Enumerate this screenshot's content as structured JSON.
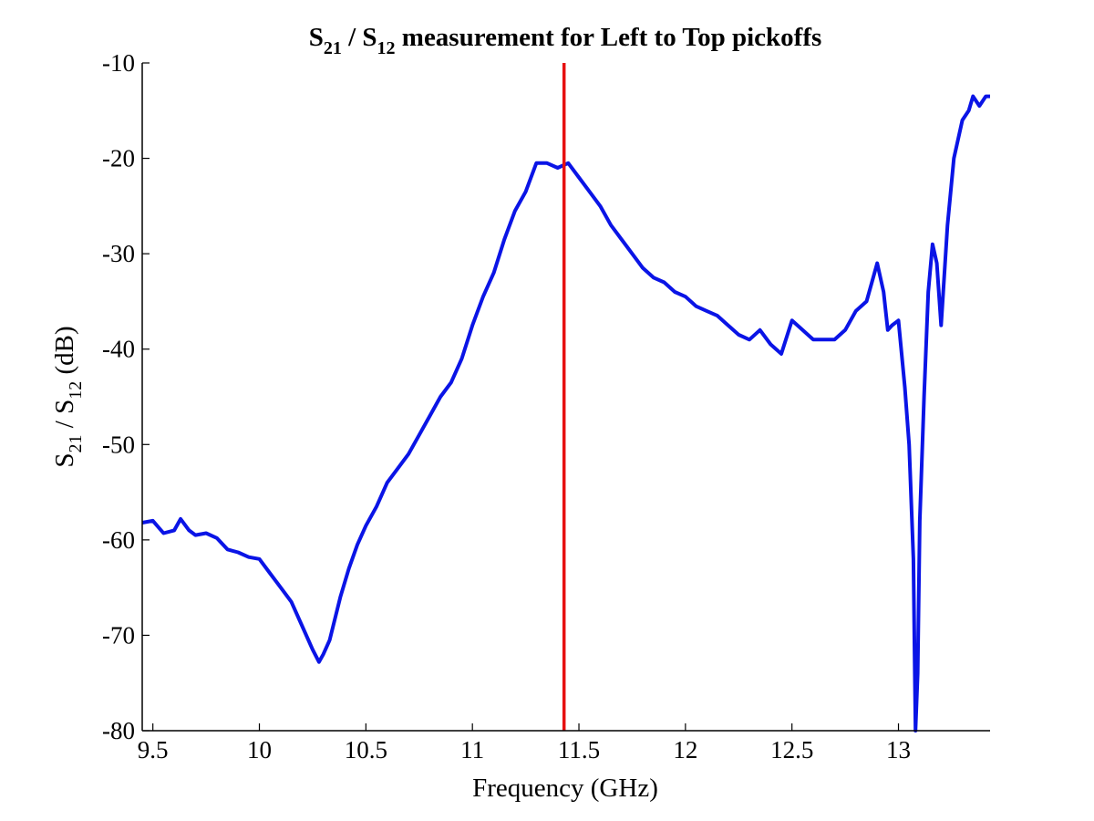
{
  "chart_data": {
    "type": "line",
    "title": {
      "s": "S",
      "sub1": "21",
      "sep": " / S",
      "sub2": "12",
      "rest": " measurement for Left to Top pickoffs"
    },
    "xlabel": "Frequency (GHz)",
    "ylabel": {
      "s": "S",
      "sub1": "21",
      "sep": " / S",
      "sub2": "12",
      "rest": " (dB)"
    },
    "xlim": [
      9.45,
      13.43
    ],
    "ylim": [
      -80,
      -10
    ],
    "x_ticks": [
      9.5,
      10,
      10.5,
      11,
      11.5,
      12,
      12.5,
      13
    ],
    "x_tick_labels": [
      "9.5",
      "10",
      "10.5",
      "11",
      "11.5",
      "12",
      "12.5",
      "13"
    ],
    "y_ticks": [
      -80,
      -70,
      -60,
      -50,
      -40,
      -30,
      -20,
      -10
    ],
    "y_tick_labels": [
      "-80",
      "-70",
      "-60",
      "-50",
      "-40",
      "-30",
      "-20",
      "-10"
    ],
    "grid": false,
    "legend": "none",
    "series": [
      {
        "color": "#0a14e6",
        "x": [
          9.45,
          9.5,
          9.55,
          9.6,
          9.63,
          9.67,
          9.7,
          9.75,
          9.8,
          9.85,
          9.9,
          9.95,
          10.0,
          10.05,
          10.1,
          10.15,
          10.2,
          10.25,
          10.28,
          10.3,
          10.33,
          10.38,
          10.42,
          10.46,
          10.5,
          10.55,
          10.6,
          10.65,
          10.7,
          10.75,
          10.8,
          10.85,
          10.9,
          10.95,
          11.0,
          11.05,
          11.1,
          11.15,
          11.2,
          11.25,
          11.3,
          11.35,
          11.4,
          11.45,
          11.5,
          11.55,
          11.6,
          11.65,
          11.7,
          11.75,
          11.8,
          11.85,
          11.9,
          11.95,
          12.0,
          12.05,
          12.1,
          12.15,
          12.2,
          12.25,
          12.3,
          12.35,
          12.4,
          12.45,
          12.5,
          12.55,
          12.6,
          12.65,
          12.7,
          12.75,
          12.8,
          12.85,
          12.9,
          12.93,
          12.95,
          12.97,
          13.0,
          13.03,
          13.05,
          13.07,
          13.08,
          13.09,
          13.1,
          13.12,
          13.14,
          13.16,
          13.18,
          13.2,
          13.23,
          13.26,
          13.3,
          13.33,
          13.35,
          13.38,
          13.41,
          13.43
        ],
        "y": [
          -58.2,
          -58.0,
          -59.3,
          -59.0,
          -57.8,
          -59.0,
          -59.5,
          -59.3,
          -59.8,
          -61.0,
          -61.3,
          -61.8,
          -62.0,
          -63.5,
          -65.0,
          -66.5,
          -69.0,
          -71.5,
          -72.8,
          -72.0,
          -70.5,
          -66.0,
          -63.0,
          -60.5,
          -58.5,
          -56.5,
          -54.0,
          -52.5,
          -51.0,
          -49.0,
          -47.0,
          -45.0,
          -43.5,
          -41.0,
          -37.5,
          -34.5,
          -32.0,
          -28.5,
          -25.5,
          -23.5,
          -20.5,
          -20.5,
          -21.0,
          -20.5,
          -22.0,
          -23.5,
          -25.0,
          -27.0,
          -28.5,
          -30.0,
          -31.5,
          -32.5,
          -33.0,
          -34.0,
          -34.5,
          -35.5,
          -36.0,
          -36.5,
          -37.5,
          -38.5,
          -39.0,
          -38.0,
          -39.5,
          -40.5,
          -37.0,
          -38.0,
          -39.0,
          -39.0,
          -39.0,
          -38.0,
          -36.0,
          -35.0,
          -31.0,
          -34.0,
          -38.0,
          -37.5,
          -37.0,
          -44.0,
          -50.0,
          -62.0,
          -80.0,
          -74.0,
          -58.0,
          -45.0,
          -34.0,
          -29.0,
          -31.0,
          -37.5,
          -27.0,
          -20.0,
          -16.0,
          -15.0,
          -13.5,
          -14.5,
          -13.5,
          -13.5
        ]
      },
      {
        "color": "#e61010",
        "x": [
          11.43,
          11.43
        ],
        "y": [
          -10,
          -80
        ]
      }
    ]
  }
}
